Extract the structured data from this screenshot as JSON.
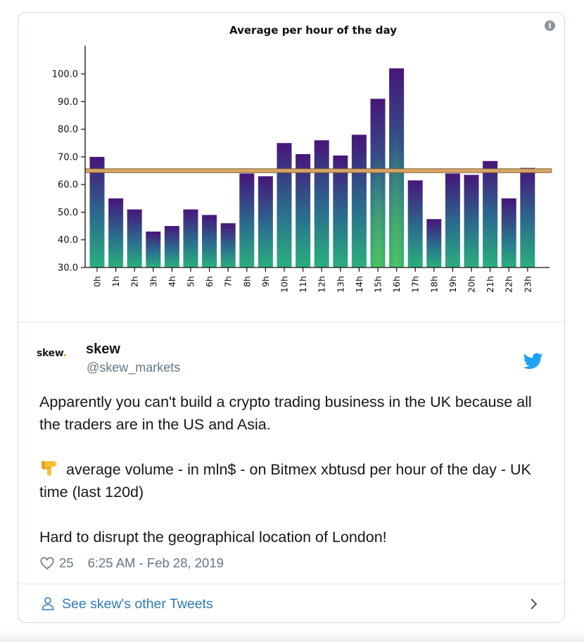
{
  "chart_data": {
    "type": "bar",
    "title": "Average per hour of the day",
    "categories": [
      "0h",
      "1h",
      "2h",
      "3h",
      "4h",
      "5h",
      "6h",
      "7h",
      "8h",
      "9h",
      "10h",
      "11h",
      "12h",
      "13h",
      "14h",
      "15h",
      "16h",
      "17h",
      "18h",
      "19h",
      "20h",
      "21h",
      "22h",
      "23h"
    ],
    "values": [
      70,
      55,
      51,
      43,
      45,
      51,
      49,
      46,
      64,
      63,
      75,
      71,
      76,
      70.5,
      78,
      91,
      102,
      61.5,
      47.5,
      64,
      63.5,
      68.5,
      55,
      66
    ],
    "reference_line": 65,
    "ylim": [
      30,
      105
    ],
    "yticks": [
      "30.0",
      "40.0",
      "50.0",
      "60.0",
      "70.0",
      "80.0",
      "90.0",
      "100.0"
    ],
    "grid": false,
    "bar_gradient": [
      "#47157a",
      "#2a6e8e",
      "#2ab07d"
    ],
    "line_color": "#d6a464"
  },
  "tweet": {
    "avatar_text": "skew",
    "avatar_dot": ".",
    "author_name": "skew",
    "author_handle": "@skew_markets",
    "paragraph_1": "Apparently you can't build a crypto trading business in the UK because all the traders are in the US and Asia.",
    "paragraph_2": "average volume - in mln$ - on Bitmex xbtusd per hour of the day - UK time (last 120d)",
    "paragraph_3": "Hard to disrupt the geographical location of London!",
    "like_count": "25",
    "timestamp": "6:25 AM - Feb 28, 2019"
  },
  "footer": {
    "link_text": "See skew's other Tweets"
  },
  "icons": {
    "info": "info-icon",
    "bird": "twitter-bird-icon",
    "emoji": "pointing-down-emoji",
    "heart": "heart-icon",
    "user": "user-icon",
    "chevron": "chevron-right-icon"
  },
  "colors": {
    "link": "#2b7bb9",
    "twitter_blue": "#1da1f2",
    "muted": "#657786"
  }
}
